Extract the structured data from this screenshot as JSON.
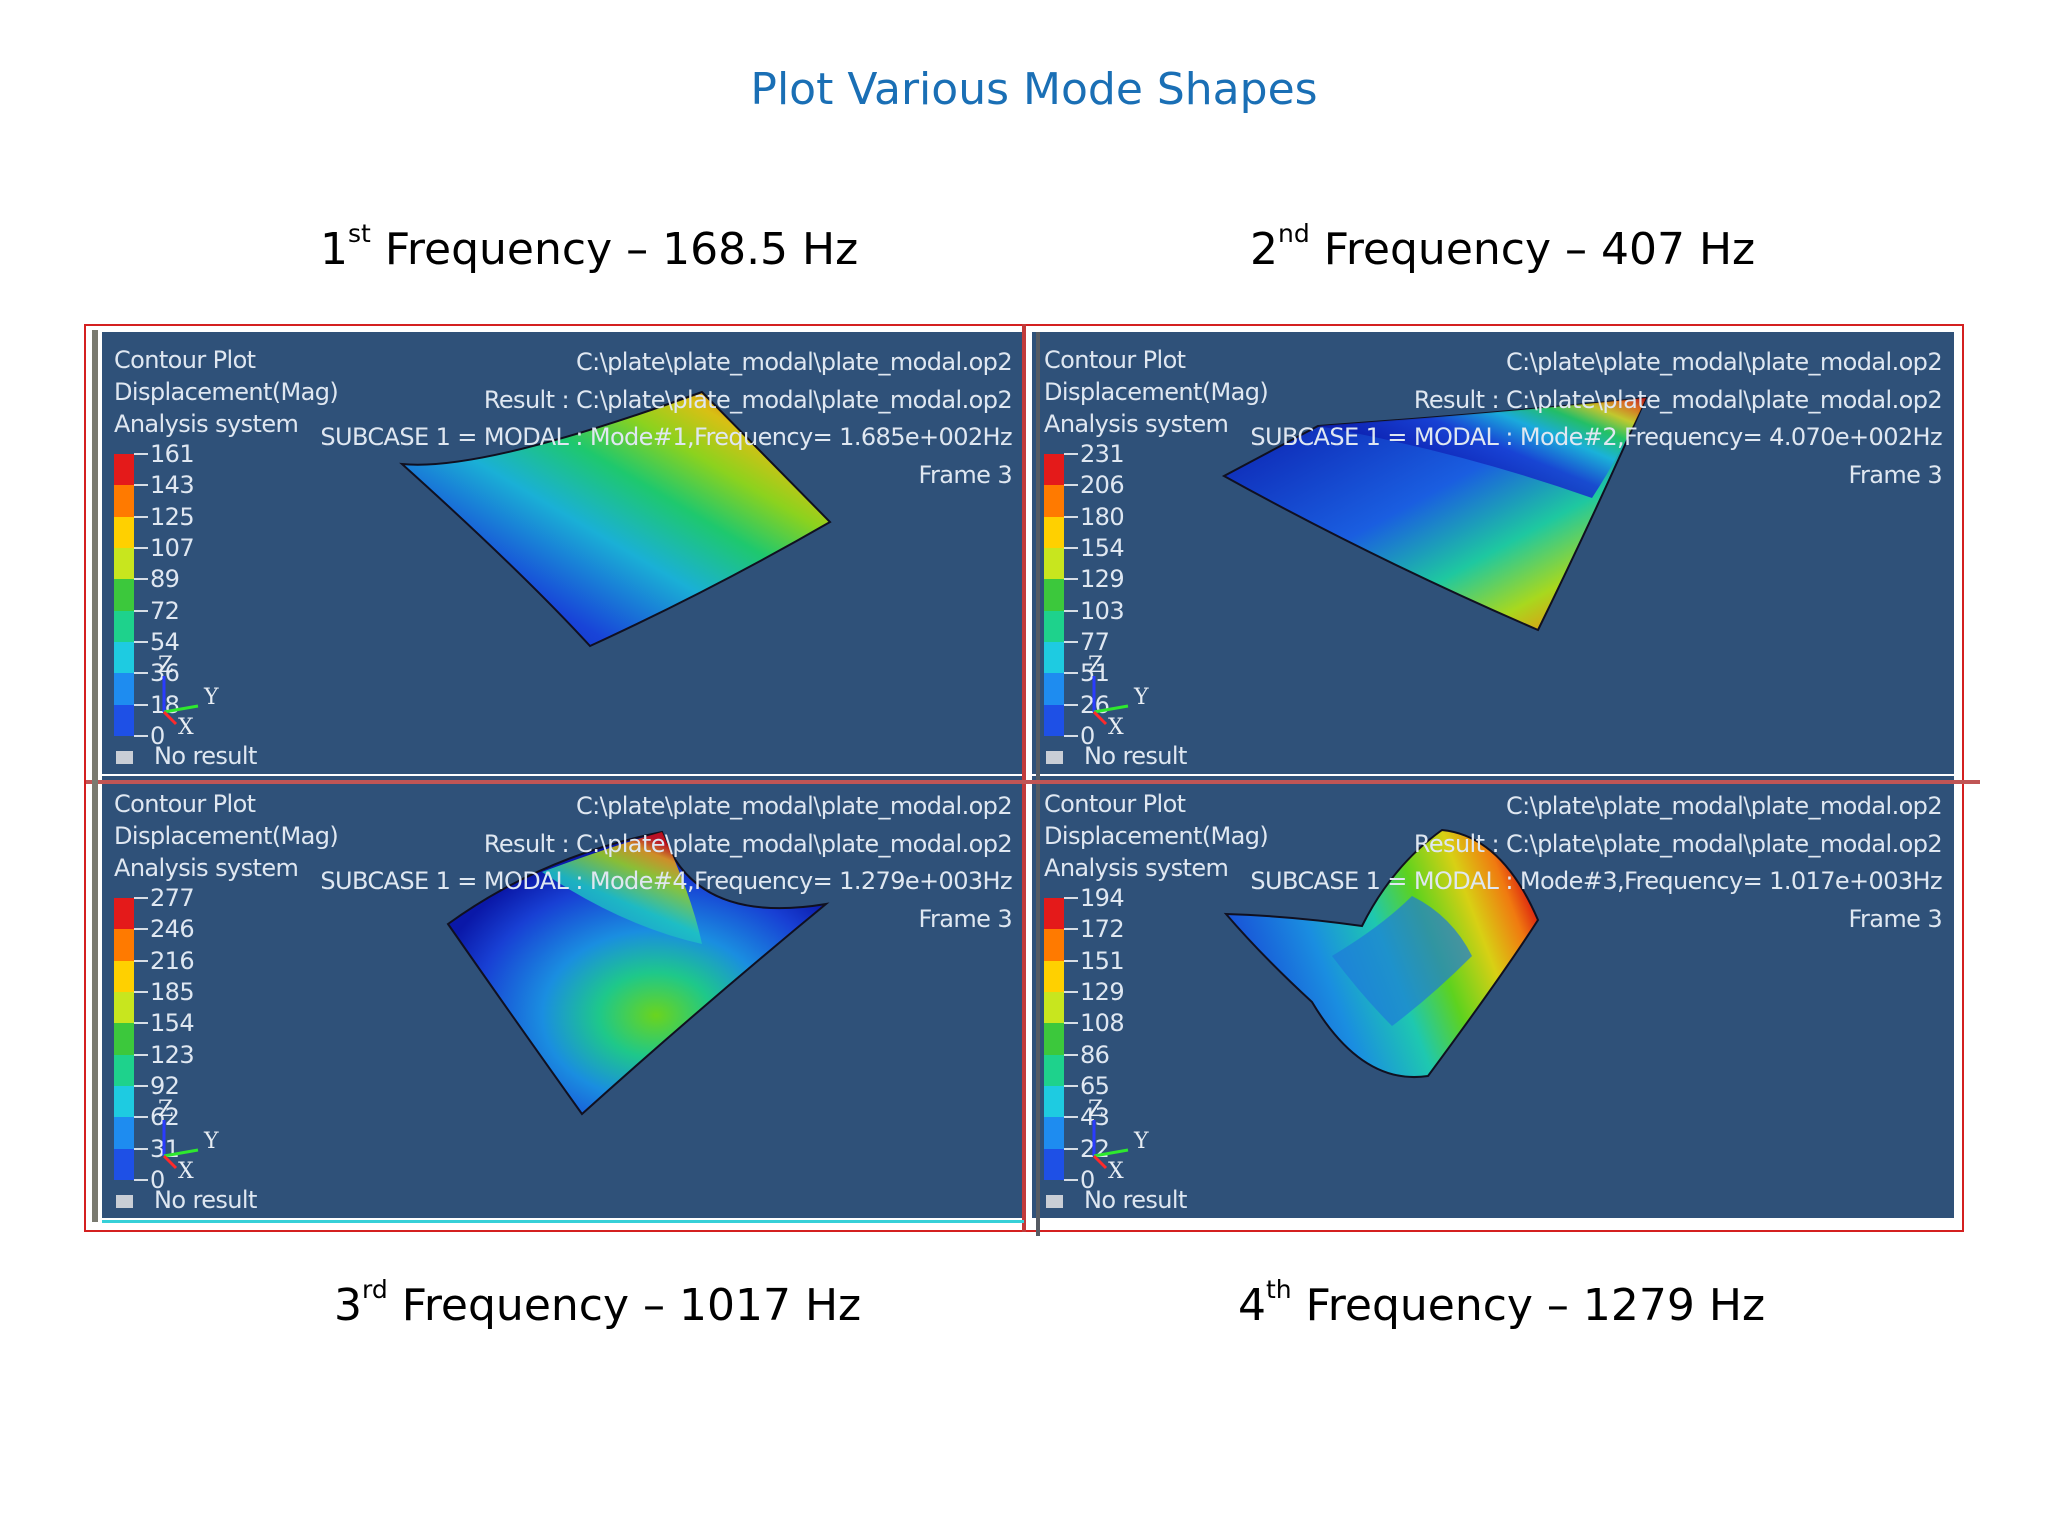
{
  "title": "Plot Various Mode Shapes",
  "frequency_labels": [
    {
      "ordinal": "1",
      "suffix": "st",
      "text": " Frequency – 168.5 Hz"
    },
    {
      "ordinal": "2",
      "suffix": "nd",
      "text": "  Frequency – 407 Hz"
    },
    {
      "ordinal": "3",
      "suffix": "rd",
      "text": "  Frequency – 1017 Hz"
    },
    {
      "ordinal": "4",
      "suffix": "th",
      "text": "  Frequency – 1279 Hz"
    }
  ],
  "legend_colors": [
    "#e41a1a",
    "#ff7a00",
    "#ffd000",
    "#c8e61e",
    "#3cc83c",
    "#1ed28c",
    "#1ecbe1",
    "#1e8cf0",
    "#1e50e6",
    "#0000c8"
  ],
  "no_result_color": "#c9ced6",
  "panels": [
    {
      "line1": "Contour Plot",
      "line2": "Displacement(Mag)",
      "line3": "Analysis system",
      "file": "C:\\plate\\plate_modal\\plate_modal.op2",
      "result": "Result : C:\\plate\\plate_modal\\plate_modal.op2",
      "subcase": "SUBCASE 1 = MODAL  : Mode#1,Frequency=  1.685e+002Hz",
      "frame": "Frame 3",
      "legend_values": [
        "161",
        "143",
        "125",
        "107",
        "89",
        "72",
        "54",
        "36",
        "18",
        "0"
      ],
      "no_result": "No result",
      "axes": {
        "z": "Z",
        "y": "Y",
        "x": "X"
      }
    },
    {
      "line1": "Contour Plot",
      "line2": "Displacement(Mag)",
      "line3": "Analysis system",
      "file": "C:\\plate\\plate_modal\\plate_modal.op2",
      "result": "Result : C:\\plate\\plate_modal\\plate_modal.op2",
      "subcase": "SUBCASE 1 = MODAL  : Mode#2,Frequency=  4.070e+002Hz",
      "frame": "Frame 3",
      "legend_values": [
        "231",
        "206",
        "180",
        "154",
        "129",
        "103",
        "77",
        "51",
        "26",
        "0"
      ],
      "no_result": "No result",
      "axes": {
        "z": "Z",
        "y": "Y",
        "x": "X"
      }
    },
    {
      "line1": "Contour Plot",
      "line2": "Displacement(Mag)",
      "line3": "Analysis system",
      "file": "C:\\plate\\plate_modal\\plate_modal.op2",
      "result": "Result : C:\\plate\\plate_modal\\plate_modal.op2",
      "subcase": "SUBCASE 1 = MODAL  : Mode#4,Frequency=  1.279e+003Hz",
      "frame": "Frame 3",
      "legend_values": [
        "277",
        "246",
        "216",
        "185",
        "154",
        "123",
        "92",
        "62",
        "31",
        "0"
      ],
      "no_result": "No result",
      "axes": {
        "z": "Z",
        "y": "Y",
        "x": "X"
      }
    },
    {
      "line1": "Contour Plot",
      "line2": "Displacement(Mag)",
      "line3": "Analysis system",
      "file": "C:\\plate\\plate_modal\\plate_modal.op2",
      "result": "Result : C:\\plate\\plate_modal\\plate_modal.op2",
      "subcase": "SUBCASE 1 = MODAL  : Mode#3,Frequency=  1.017e+003Hz",
      "frame": "Frame 3",
      "legend_values": [
        "194",
        "172",
        "151",
        "129",
        "108",
        "86",
        "65",
        "43",
        "22",
        "0"
      ],
      "no_result": "No result",
      "axes": {
        "z": "Z",
        "y": "Y",
        "x": "X"
      }
    }
  ]
}
